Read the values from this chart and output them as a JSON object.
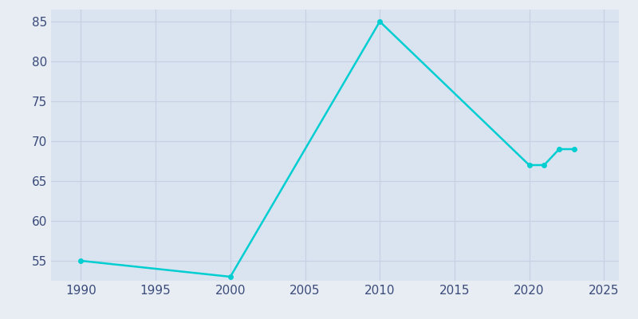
{
  "years": [
    1990,
    2000,
    2010,
    2020,
    2021,
    2022,
    2023
  ],
  "population": [
    55,
    53,
    85,
    67,
    67,
    69,
    69
  ],
  "line_color": "#00CED1",
  "background_color": "#E8EDF4",
  "plot_bg_color": "#DAE3F0",
  "xlim": [
    1988,
    2026
  ],
  "ylim": [
    52.5,
    86.5
  ],
  "xticks": [
    1990,
    1995,
    2000,
    2005,
    2010,
    2015,
    2020,
    2025
  ],
  "yticks": [
    55,
    60,
    65,
    70,
    75,
    80,
    85
  ],
  "tick_color": "#3A4B7A",
  "grid_color": "#C5D0E0",
  "linewidth": 1.8,
  "marker": "o",
  "marker_size": 4
}
